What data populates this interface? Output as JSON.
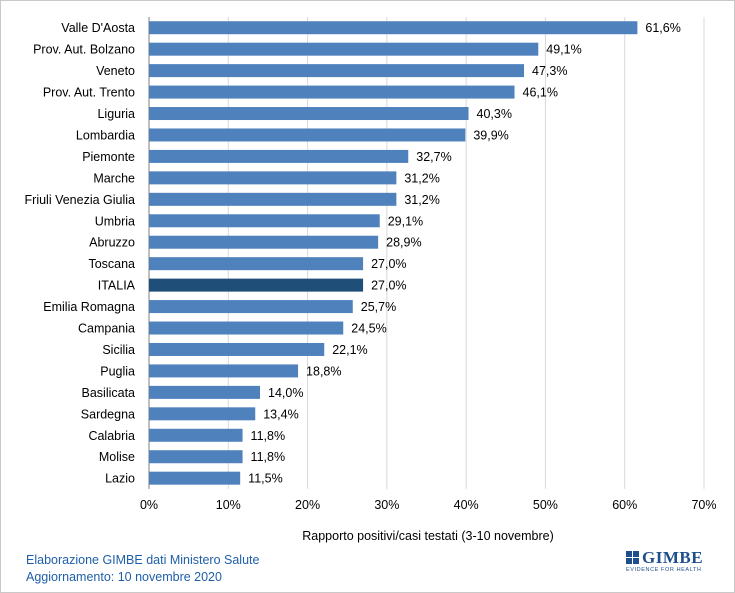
{
  "chart_data": {
    "type": "bar",
    "orientation": "horizontal",
    "categories": [
      "Valle D'Aosta",
      "Prov. Aut. Bolzano",
      "Veneto",
      "Prov. Aut. Trento",
      "Liguria",
      "Lombardia",
      "Piemonte",
      "Marche",
      "Friuli Venezia Giulia",
      "Umbria",
      "Abruzzo",
      "Toscana",
      "ITALIA",
      "Emilia Romagna",
      "Campania",
      "Sicilia",
      "Puglia",
      "Basilicata",
      "Sardegna",
      "Calabria",
      "Molise",
      "Lazio"
    ],
    "values": [
      61.6,
      49.1,
      47.3,
      46.1,
      40.3,
      39.9,
      32.7,
      31.2,
      31.2,
      29.1,
      28.9,
      27.0,
      27.0,
      25.7,
      24.5,
      22.1,
      18.8,
      14.0,
      13.4,
      11.8,
      11.8,
      11.5
    ],
    "value_labels": [
      "61,6%",
      "49,1%",
      "47,3%",
      "46,1%",
      "40,3%",
      "39,9%",
      "32,7%",
      "31,2%",
      "31,2%",
      "29,1%",
      "28,9%",
      "27,0%",
      "27,0%",
      "25,7%",
      "24,5%",
      "22,1%",
      "18,8%",
      "14,0%",
      "13,4%",
      "11,8%",
      "11,8%",
      "11,5%"
    ],
    "highlight_category": "ITALIA",
    "xlabel": "Rapporto positivi/casi testati (3-10 novembre)",
    "xlim": [
      0,
      70
    ],
    "xticks": [
      0,
      10,
      20,
      30,
      40,
      50,
      60,
      70
    ],
    "xtick_labels": [
      "0%",
      "10%",
      "20%",
      "30%",
      "40%",
      "50%",
      "60%",
      "70%"
    ],
    "grid": "vertical",
    "legend": "none",
    "colors": {
      "bar": "#4f81bd",
      "highlight": "#1f4e79",
      "grid": "#d9d9d9",
      "axis": "#7f7f7f"
    }
  },
  "footer": {
    "line1": "Elaborazione GIMBE dati Ministero Salute",
    "line2": "Aggiornamento: 10 novembre 2020"
  },
  "logo": {
    "text": "GIMBE",
    "subtitle": "EVIDENCE FOR HEALTH",
    "color": "#1f4e8c",
    "icon": "gimbe-logo-icon"
  }
}
